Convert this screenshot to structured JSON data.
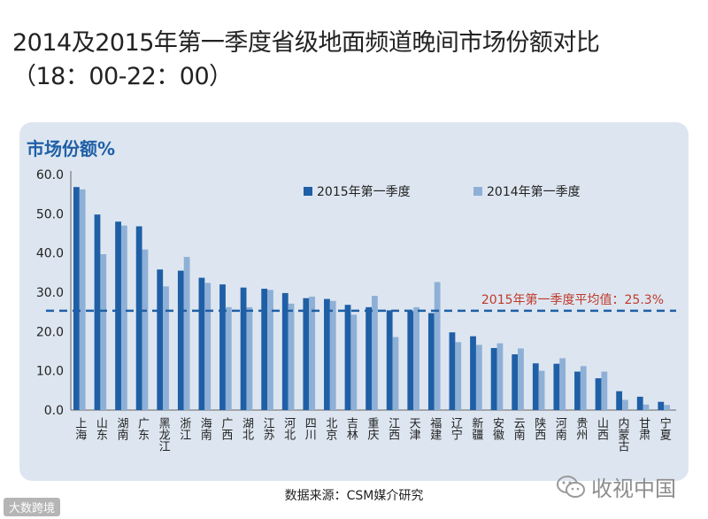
{
  "page": {
    "title_line1": "2014及2015年第一季度省级地面频道晚间市场份额对比",
    "title_line2": "（18：00-22：00）",
    "source": "数据来源：CSM媒介研究",
    "watermark_left": "大数跨境",
    "watermark_right": "收视中国",
    "wechat_icon": "wechat-icon"
  },
  "chart_data": {
    "type": "bar",
    "ylabel": "市场份额%",
    "ylim": [
      0,
      60
    ],
    "yticks": [
      "0.0",
      "10.0",
      "20.0",
      "30.0",
      "40.0",
      "50.0",
      "60.0"
    ],
    "grid": false,
    "legend_position": "top-center",
    "categories": [
      "上海",
      "山东",
      "湖南",
      "广东",
      "黑龙江",
      "浙江",
      "海南",
      "广西",
      "湖北",
      "江苏",
      "河北",
      "四川",
      "北京",
      "吉林",
      "重庆",
      "江西",
      "天津",
      "福建",
      "辽宁",
      "新疆",
      "安徽",
      "云南",
      "陕西",
      "河南",
      "贵州",
      "山西",
      "内蒙古",
      "甘肃",
      "宁夏"
    ],
    "series": [
      {
        "name": "2015年第一季度",
        "color": "#1f5fa6",
        "values": [
          56.8,
          49.8,
          48.0,
          46.8,
          35.8,
          35.5,
          33.7,
          32.0,
          31.2,
          30.9,
          29.8,
          28.5,
          28.3,
          26.8,
          26.2,
          25.4,
          25.2,
          24.7,
          19.8,
          18.8,
          15.8,
          14.2,
          11.9,
          11.8,
          9.8,
          8.1,
          4.8,
          3.4,
          2.1
        ]
      },
      {
        "name": "2014年第一季度",
        "color": "#8fb0d6",
        "values": [
          56.2,
          39.7,
          47.0,
          40.9,
          31.5,
          39.0,
          32.4,
          26.2,
          26.2,
          30.6,
          27.1,
          28.9,
          27.8,
          24.3,
          29.1,
          18.6,
          26.2,
          32.6,
          17.3,
          16.6,
          17.0,
          15.7,
          10.0,
          13.2,
          11.2,
          9.8,
          2.6,
          1.4,
          1.3
        ]
      }
    ],
    "reference_line": {
      "value": 25.3,
      "label": "2015年第一季度平均值：25.3%",
      "color": "#1f5fa6",
      "label_color": "#c0392b"
    }
  }
}
